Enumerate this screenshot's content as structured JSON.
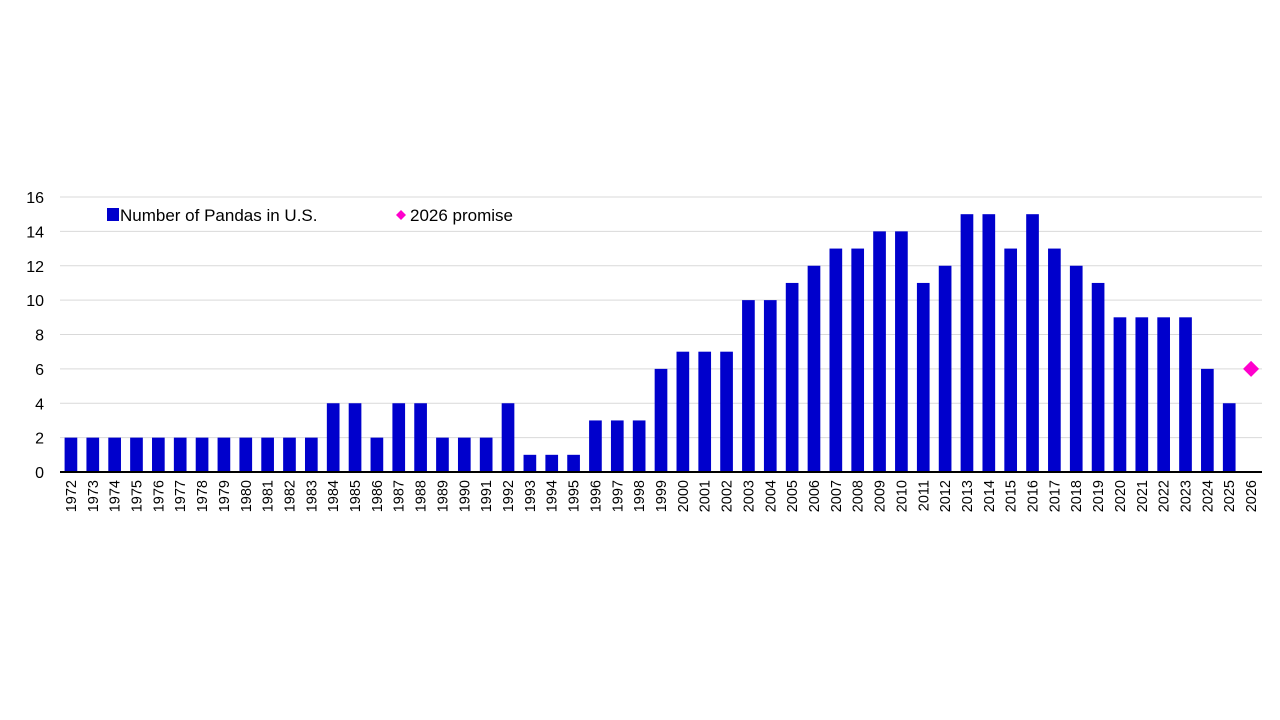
{
  "chart_data": {
    "type": "bar",
    "categories": [
      "1972",
      "1973",
      "1974",
      "1975",
      "1976",
      "1977",
      "1978",
      "1979",
      "1980",
      "1981",
      "1982",
      "1983",
      "1984",
      "1985",
      "1986",
      "1987",
      "1988",
      "1989",
      "1990",
      "1991",
      "1992",
      "1993",
      "1994",
      "1995",
      "1996",
      "1997",
      "1998",
      "1999",
      "2000",
      "2001",
      "2002",
      "2003",
      "2004",
      "2005",
      "2006",
      "2007",
      "2008",
      "2009",
      "2010",
      "2011",
      "2012",
      "2013",
      "2014",
      "2015",
      "2016",
      "2017",
      "2018",
      "2019",
      "2020",
      "2021",
      "2022",
      "2023",
      "2024",
      "2025",
      "2026"
    ],
    "series": [
      {
        "name": "Number of Pandas in U.S.",
        "kind": "bar",
        "color": "#0000CC",
        "values": [
          2,
          2,
          2,
          2,
          2,
          2,
          2,
          2,
          2,
          2,
          2,
          2,
          4,
          4,
          2,
          4,
          4,
          2,
          2,
          2,
          4,
          1,
          1,
          1,
          3,
          3,
          3,
          6,
          7,
          7,
          7,
          10,
          10,
          11,
          12,
          13,
          13,
          14,
          14,
          11,
          12,
          15,
          15,
          13,
          15,
          13,
          12,
          11,
          9,
          9,
          9,
          9,
          6,
          4,
          null
        ]
      },
      {
        "name": "2026 promise",
        "kind": "marker",
        "marker": "diamond",
        "color": "#FF00CC",
        "points": [
          {
            "x": "2026",
            "y": 6
          }
        ]
      }
    ],
    "title": "",
    "xlabel": "",
    "ylabel": "",
    "ylim": [
      0,
      16
    ],
    "yticks": [
      0,
      2,
      4,
      6,
      8,
      10,
      12,
      14,
      16
    ],
    "grid": true,
    "legend_position": "top-left",
    "x_tick_rotation": "vertical"
  }
}
